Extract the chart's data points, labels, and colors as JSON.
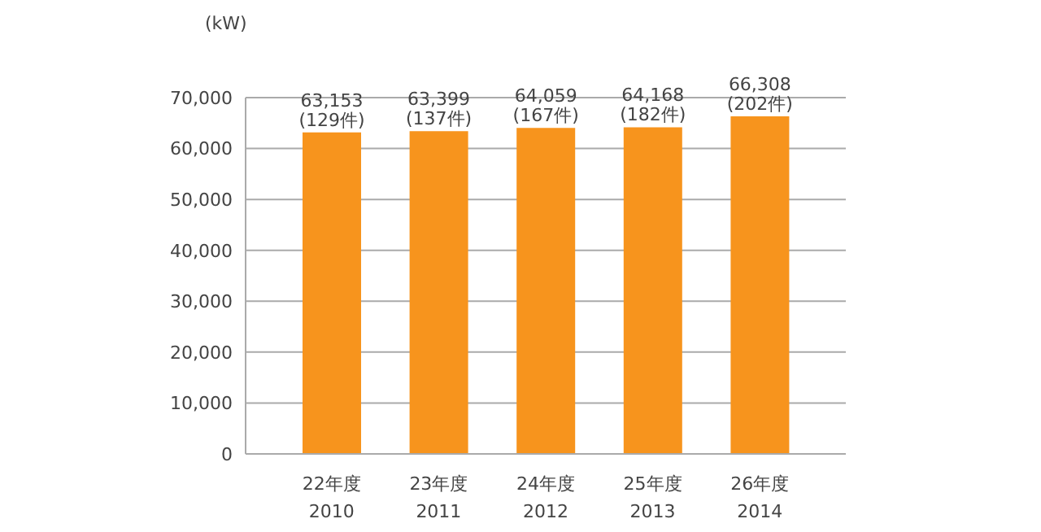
{
  "chart_data": {
    "type": "bar",
    "ylabel": "(kW)",
    "categories": [
      "22年度\n2010",
      "23年度\n2011",
      "24年度\n2012",
      "25年度\n2013",
      "26年度\n2014"
    ],
    "values": [
      63153,
      63399,
      64059,
      64168,
      66308
    ],
    "value_labels": [
      "63,153\n(129件)",
      "63,399\n(137件)",
      "64,059\n(167件)",
      "64,168\n(182件)",
      "66,308\n(202件)"
    ],
    "color": "#f7941d",
    "ylim": [
      0,
      70000
    ],
    "yticks": [
      0,
      {
        "value": 10000,
        "label": "10,000"
      },
      {
        "value": 20000,
        "label": "20,000"
      },
      {
        "value": 30000,
        "label": "30,000"
      },
      {
        "value": 40000,
        "label": "40,000"
      },
      {
        "value": 50000,
        "label": "50,000"
      },
      {
        "value": 60000,
        "label": "60,000"
      },
      {
        "value": 70000,
        "label": "70,000"
      }
    ],
    "grid": "y"
  }
}
